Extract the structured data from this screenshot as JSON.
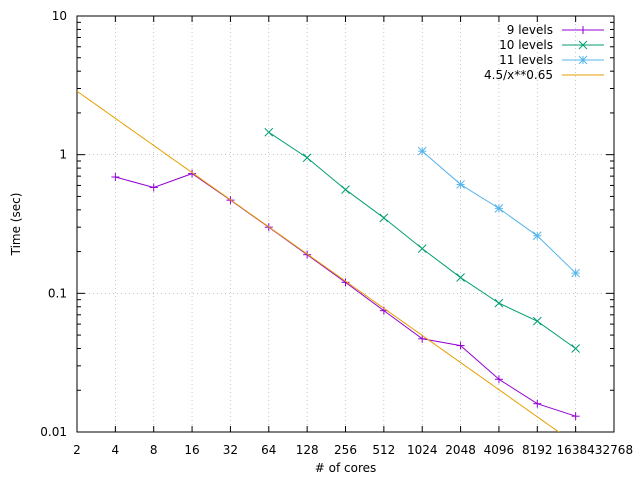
{
  "chart_data": {
    "type": "line",
    "xlabel": "# of cores",
    "ylabel": "Time (sec)",
    "x_scale": "log2",
    "y_scale": "log10",
    "xlim": [
      2,
      32768
    ],
    "ylim": [
      0.01,
      10
    ],
    "x_ticks": [
      "2",
      "4",
      "8",
      "16",
      "32",
      "64",
      "128",
      "256",
      "512",
      "1024",
      "2048",
      "4096",
      "8192",
      "16384",
      "32768"
    ],
    "y_ticks": [
      "0.01",
      "0.1",
      "1",
      "10"
    ],
    "grid": true,
    "legend_position": "top-right",
    "series": [
      {
        "name": "9 levels",
        "color": "#9400d3",
        "marker": "plus",
        "x": [
          4,
          8,
          16,
          32,
          64,
          128,
          256,
          512,
          1024,
          2048,
          4096,
          8192,
          16384
        ],
        "y": [
          0.69,
          0.58,
          0.73,
          0.47,
          0.3,
          0.19,
          0.12,
          0.075,
          0.047,
          0.042,
          0.024,
          0.016,
          0.013
        ]
      },
      {
        "name": "10 levels",
        "color": "#009e73",
        "marker": "cross",
        "x": [
          64,
          128,
          256,
          512,
          1024,
          2048,
          4096,
          8192,
          16384
        ],
        "y": [
          1.45,
          0.95,
          0.56,
          0.35,
          0.21,
          0.13,
          0.085,
          0.063,
          0.04
        ]
      },
      {
        "name": "11 levels",
        "color": "#56b4e9",
        "marker": "star",
        "x": [
          1024,
          2048,
          4096,
          8192,
          16384
        ],
        "y": [
          1.06,
          0.61,
          0.41,
          0.26,
          0.14
        ]
      },
      {
        "name": "4.5/x**0.65",
        "color": "#e69f00",
        "marker": "none",
        "function": {
          "a": 4.5,
          "b": 0.65
        }
      }
    ]
  }
}
